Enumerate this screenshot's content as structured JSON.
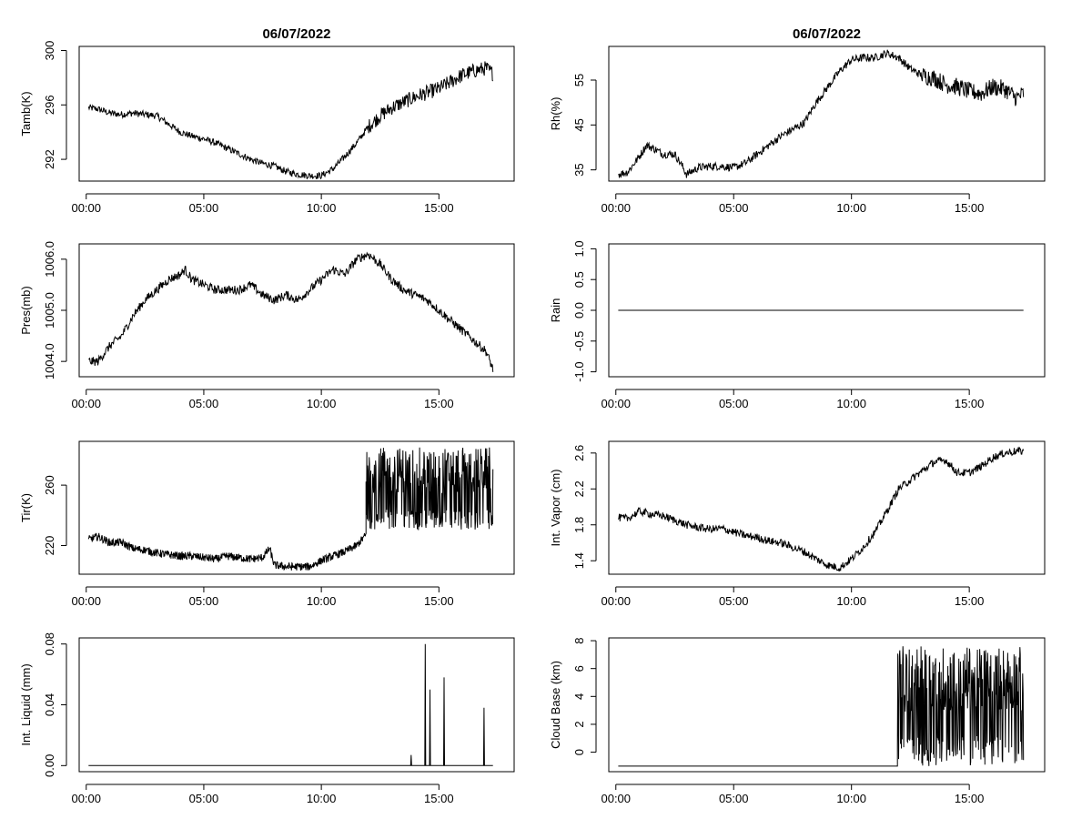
{
  "chart_data": [
    {
      "type": "line",
      "id": "tamb",
      "title": "06/07/2022",
      "ylabel": "Tamb(K)",
      "xlabel": "",
      "xlim": [
        -0.3,
        18.2
      ],
      "xticks": [
        0,
        5,
        10,
        15
      ],
      "xtick_labels": [
        "00:00",
        "05:00",
        "10:00",
        "15:00"
      ],
      "ylim": [
        290.4,
        300.3
      ],
      "yticks": [
        292,
        296,
        300
      ],
      "ytick_labels": [
        "292",
        "296",
        "300"
      ],
      "x": [
        0.1,
        0.5,
        1,
        1.5,
        2,
        2.5,
        3,
        3.5,
        4,
        4.5,
        5,
        5.5,
        6,
        6.5,
        7,
        7.5,
        8,
        8.5,
        9,
        9.5,
        10,
        10.5,
        11,
        11.5,
        12,
        12.5,
        13,
        13.5,
        14,
        14.5,
        15,
        15.5,
        16,
        16.5,
        17,
        17.3
      ],
      "values": [
        295.8,
        295.7,
        295.4,
        295.3,
        295.4,
        295.3,
        295.2,
        294.6,
        294.0,
        293.7,
        293.5,
        293.2,
        292.8,
        292.4,
        292.0,
        291.7,
        291.5,
        291.1,
        290.9,
        290.8,
        290.8,
        291.3,
        292.2,
        293.2,
        294.4,
        295.2,
        295.8,
        296.2,
        296.6,
        296.9,
        297.2,
        297.7,
        298.2,
        298.5,
        298.7,
        298.3
      ],
      "noise": 0.25,
      "noise_start": 12
    },
    {
      "type": "line",
      "id": "rh",
      "title": "06/07/2022",
      "ylabel": "Rh(%)",
      "xlabel": "",
      "xlim": [
        -0.3,
        18.2
      ],
      "xticks": [
        0,
        5,
        10,
        15
      ],
      "xtick_labels": [
        "00:00",
        "05:00",
        "10:00",
        "15:00"
      ],
      "ylim": [
        32.5,
        62.5
      ],
      "yticks": [
        35,
        45,
        55
      ],
      "ytick_labels": [
        "35",
        "45",
        "55"
      ],
      "x": [
        0.1,
        0.5,
        1,
        1.3,
        1.7,
        2,
        2.5,
        2.8,
        3,
        3.5,
        4,
        4.5,
        5,
        5.5,
        6,
        6.5,
        7,
        7.5,
        8,
        8.5,
        9,
        9.5,
        10,
        10.5,
        11,
        11.5,
        12,
        12.5,
        13,
        13.5,
        14,
        14.5,
        15,
        15.5,
        16,
        16.5,
        17,
        17.3
      ],
      "values": [
        34,
        34.5,
        38,
        40.5,
        39.5,
        38.5,
        38.5,
        36,
        34,
        35.5,
        35.8,
        35.8,
        35.5,
        36.5,
        38.5,
        40.5,
        42.5,
        44,
        45.5,
        50,
        53.5,
        57,
        59.5,
        60,
        60,
        61,
        60,
        57.5,
        56,
        55.5,
        54,
        53.5,
        52.5,
        52,
        53.5,
        53,
        51,
        52
      ],
      "noise": 0.9,
      "noise_start": 13
    },
    {
      "type": "line",
      "id": "pres",
      "title": "",
      "ylabel": "Pres(mb)",
      "xlabel": "",
      "xlim": [
        -0.3,
        18.2
      ],
      "xticks": [
        0,
        5,
        10,
        15
      ],
      "xtick_labels": [
        "00:00",
        "05:00",
        "10:00",
        "15:00"
      ],
      "ylim": [
        1003.7,
        1006.3
      ],
      "yticks": [
        1004.0,
        1005.0,
        1006.0
      ],
      "ytick_labels": [
        "1004.0",
        "1005.0",
        "1006.0"
      ],
      "x": [
        0.1,
        0.5,
        1,
        1.5,
        2,
        2.5,
        3,
        3.5,
        4,
        4.2,
        4.5,
        5,
        5.5,
        6,
        6.5,
        7,
        7.5,
        8,
        8.5,
        9,
        9.5,
        10,
        10.5,
        11,
        11.5,
        12,
        12.5,
        13,
        13.5,
        14,
        14.5,
        15,
        15.5,
        16,
        16.5,
        17,
        17.3
      ],
      "values": [
        1004.0,
        1004.0,
        1004.3,
        1004.5,
        1004.9,
        1005.2,
        1005.4,
        1005.6,
        1005.7,
        1005.8,
        1005.6,
        1005.5,
        1005.4,
        1005.4,
        1005.4,
        1005.5,
        1005.3,
        1005.2,
        1005.3,
        1005.2,
        1005.4,
        1005.6,
        1005.8,
        1005.7,
        1006.0,
        1006.1,
        1005.9,
        1005.6,
        1005.4,
        1005.3,
        1005.2,
        1005.0,
        1004.8,
        1004.6,
        1004.4,
        1004.2,
        1003.85
      ],
      "noise": 0.04,
      "noise_start": 0
    },
    {
      "type": "line",
      "id": "rain",
      "title": "",
      "ylabel": "Rain",
      "xlabel": "",
      "xlim": [
        -0.3,
        18.2
      ],
      "xticks": [
        0,
        5,
        10,
        15
      ],
      "xtick_labels": [
        "00:00",
        "05:00",
        "10:00",
        "15:00"
      ],
      "ylim": [
        -1.08,
        1.08
      ],
      "yticks": [
        -1.0,
        -0.5,
        0.0,
        0.5,
        1.0
      ],
      "ytick_labels": [
        "-1.0",
        "-0.5",
        "0.0",
        "0.5",
        "1.0"
      ],
      "x": [
        0.1,
        17.3
      ],
      "values": [
        0,
        0
      ],
      "noise": 0,
      "noise_start": 99
    },
    {
      "type": "line",
      "id": "tir",
      "title": "",
      "ylabel": "Tir(K)",
      "xlabel": "",
      "xlim": [
        -0.3,
        18.2
      ],
      "xticks": [
        0,
        5,
        10,
        15
      ],
      "xtick_labels": [
        "00:00",
        "05:00",
        "10:00",
        "15:00"
      ],
      "ylim": [
        201,
        289
      ],
      "yticks": [
        220,
        260
      ],
      "ytick_labels": [
        "220",
        "260"
      ],
      "x": [
        0.1,
        0.5,
        1,
        1.5,
        2,
        2.5,
        3,
        3.5,
        4,
        4.5,
        5,
        5.5,
        6,
        6.5,
        7,
        7.5,
        7.8,
        8,
        8.5,
        9,
        9.5,
        10,
        10.5,
        11,
        11.5,
        11.9
      ],
      "values": [
        224,
        226,
        222,
        222,
        218,
        217,
        215,
        214,
        213,
        213,
        212,
        211,
        213,
        212,
        211,
        212,
        218,
        207,
        206,
        206,
        206,
        210,
        213,
        216,
        220,
        227
      ],
      "noise": 1.2,
      "noise_start": 0,
      "spiky_start": 11.9,
      "spiky_end": 17.3,
      "spiky_floor": 230,
      "spiky_max": 285
    },
    {
      "type": "line",
      "id": "vapor",
      "title": "",
      "ylabel": "Int. Vapor (cm)",
      "xlabel": "",
      "xlim": [
        -0.3,
        18.2
      ],
      "xticks": [
        0,
        5,
        10,
        15
      ],
      "xtick_labels": [
        "00:00",
        "05:00",
        "10:00",
        "15:00"
      ],
      "ylim": [
        1.25,
        2.73
      ],
      "yticks": [
        1.4,
        1.8,
        2.2,
        2.6
      ],
      "ytick_labels": [
        "1.4",
        "1.8",
        "2.2",
        "2.6"
      ],
      "x": [
        0.1,
        0.5,
        1,
        1.5,
        2,
        2.5,
        3,
        3.5,
        4,
        4.5,
        5,
        5.5,
        6,
        6.5,
        7,
        7.5,
        8,
        8.5,
        9,
        9.5,
        10,
        10.5,
        11,
        11.5,
        12,
        12.5,
        13,
        13.5,
        14,
        14.5,
        15,
        15.5,
        16,
        16.5,
        17,
        17.3
      ],
      "values": [
        1.88,
        1.87,
        1.95,
        1.92,
        1.9,
        1.85,
        1.8,
        1.77,
        1.75,
        1.76,
        1.72,
        1.68,
        1.66,
        1.62,
        1.6,
        1.55,
        1.5,
        1.42,
        1.35,
        1.32,
        1.42,
        1.55,
        1.72,
        1.95,
        2.2,
        2.3,
        2.4,
        2.5,
        2.52,
        2.38,
        2.38,
        2.45,
        2.55,
        2.6,
        2.62,
        2.62
      ],
      "noise": 0.02,
      "noise_start": 0
    },
    {
      "type": "line",
      "id": "liquid",
      "title": "",
      "ylabel": "Int. Liquid (mm)",
      "xlabel": "",
      "xlim": [
        -0.3,
        18.2
      ],
      "xticks": [
        0,
        5,
        10,
        15
      ],
      "xtick_labels": [
        "00:00",
        "05:00",
        "10:00",
        "15:00"
      ],
      "ylim": [
        -0.004,
        0.084
      ],
      "yticks": [
        0.0,
        0.04,
        0.08
      ],
      "ytick_labels": [
        "0.00",
        "0.04",
        "0.08"
      ],
      "x": [
        0.1,
        13.8,
        13.82,
        13.84,
        14.4,
        14.42,
        14.44,
        14.6,
        14.62,
        14.64,
        15.2,
        15.22,
        15.24,
        16.9,
        16.92,
        16.94,
        17.3
      ],
      "values": [
        0,
        0,
        0.007,
        0,
        0,
        0.08,
        0,
        0,
        0.05,
        0,
        0,
        0.058,
        0,
        0,
        0.038,
        0,
        0
      ],
      "noise": 0,
      "noise_start": 99
    },
    {
      "type": "line",
      "id": "cloudbase",
      "title": "",
      "ylabel": "Cloud Base (km)",
      "xlabel": "",
      "xlim": [
        -0.3,
        18.2
      ],
      "xticks": [
        0,
        5,
        10,
        15
      ],
      "xtick_labels": [
        "00:00",
        "05:00",
        "10:00",
        "15:00"
      ],
      "ylim": [
        -1.4,
        8.2
      ],
      "yticks": [
        0,
        2,
        4,
        6,
        8
      ],
      "ytick_labels": [
        "0",
        "2",
        "4",
        "6",
        "8"
      ],
      "x": [
        0.1,
        11.95
      ],
      "values": [
        -1,
        -1
      ],
      "noise": 0,
      "noise_start": 99,
      "spiky_start": 11.95,
      "spiky_end": 17.3,
      "spiky_floor": -1,
      "spiky_max": 7.6
    }
  ]
}
